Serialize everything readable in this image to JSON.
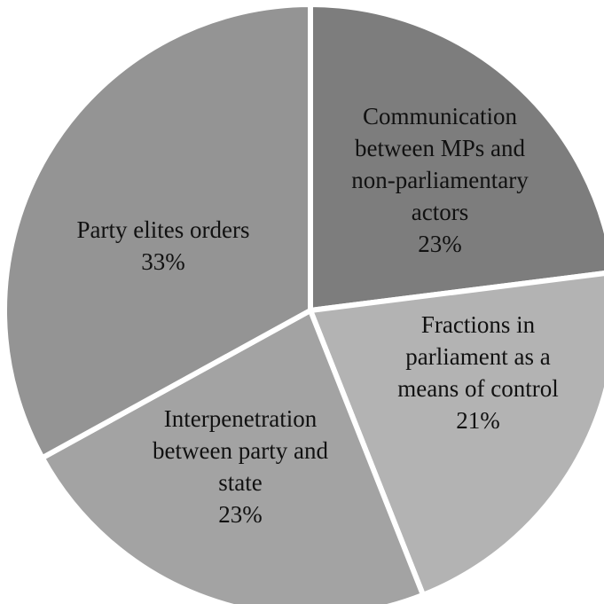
{
  "chart_data": {
    "type": "pie",
    "slices": [
      {
        "label_lines": [
          "Communication",
          "between MPs and",
          "non-parliamentary",
          "actors"
        ],
        "value_label": "23%",
        "value": 23,
        "color": "#7d7d7d"
      },
      {
        "label_lines": [
          "Fractions in",
          "parliament as a",
          "means of control"
        ],
        "value_label": "21%",
        "value": 21,
        "color": "#b3b3b3"
      },
      {
        "label_lines": [
          "Interpenetration",
          "between party and",
          "state"
        ],
        "value_label": "23%",
        "value": 23,
        "color": "#a3a3a3"
      },
      {
        "label_lines": [
          "Party elites orders"
        ],
        "value_label": "33%",
        "value": 33,
        "color": "#949494"
      }
    ],
    "start": "top",
    "direction": "clockwise",
    "legend": "none"
  }
}
